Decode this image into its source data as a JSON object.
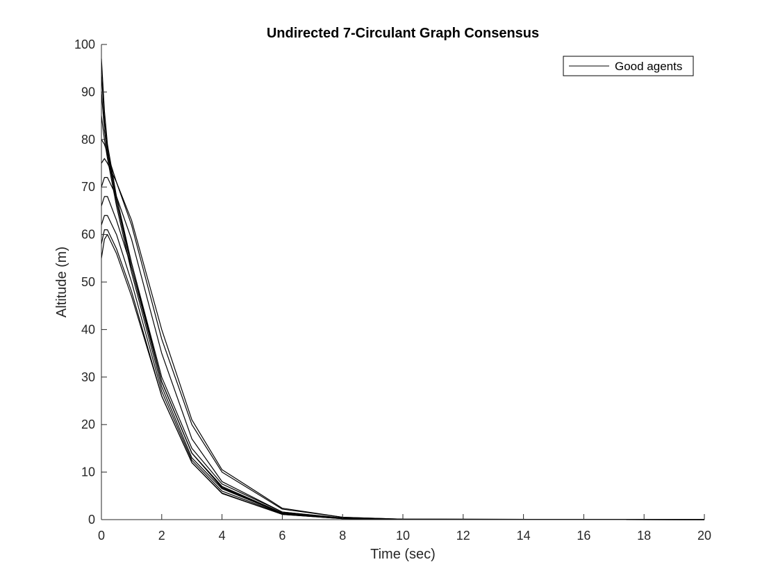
{
  "chart_data": {
    "type": "line",
    "title": "Undirected 7-Circulant Graph Consensus",
    "xlabel": "Time (sec)",
    "ylabel": "Altitude (m)",
    "xlim": [
      0,
      20
    ],
    "ylim": [
      0,
      100
    ],
    "xticks": [
      "0",
      "2",
      "4",
      "6",
      "8",
      "10",
      "12",
      "14",
      "16",
      "18",
      "20"
    ],
    "yticks": [
      "0",
      "10",
      "20",
      "30",
      "40",
      "50",
      "60",
      "70",
      "80",
      "90",
      "100"
    ],
    "grid": false,
    "legend": {
      "entries": [
        "Good agents"
      ],
      "position": "top-right"
    },
    "line_color": "#000000",
    "series": [
      {
        "name": "Good agents",
        "x": [
          0,
          0.1,
          0.2,
          0.5,
          1,
          2,
          3,
          4,
          6,
          8,
          10,
          20
        ],
        "y": [
          97,
          86,
          79,
          68,
          54,
          30,
          15,
          7.5,
          1.6,
          0.3,
          0.06,
          0
        ]
      },
      {
        "x": [
          0,
          0.1,
          0.2,
          0.5,
          1,
          2,
          3,
          4,
          6,
          8,
          10,
          20
        ],
        "y": [
          94,
          84,
          78,
          67,
          53,
          29,
          14,
          7,
          1.4,
          0.3,
          0.06,
          0
        ]
      },
      {
        "x": [
          0,
          0.1,
          0.2,
          0.5,
          1,
          2,
          3,
          4,
          6,
          8,
          10,
          20
        ],
        "y": [
          90,
          82,
          77,
          67,
          54,
          29,
          14,
          6.8,
          1.4,
          0.3,
          0.05,
          0
        ]
      },
      {
        "x": [
          0,
          0.1,
          0.2,
          0.5,
          1,
          2,
          3,
          4,
          6,
          8,
          10,
          20
        ],
        "y": [
          85,
          80,
          76,
          66,
          52,
          28,
          13,
          6.5,
          1.3,
          0.25,
          0.05,
          0
        ]
      },
      {
        "x": [
          0,
          0.1,
          0.2,
          0.5,
          1,
          2,
          3,
          4,
          6,
          8,
          10,
          20
        ],
        "y": [
          80,
          79,
          77,
          71,
          62,
          38,
          20,
          10,
          2.2,
          0.5,
          0.1,
          0
        ]
      },
      {
        "x": [
          0,
          0.1,
          0.2,
          0.5,
          1,
          2,
          3,
          4,
          6,
          8,
          10,
          20
        ],
        "y": [
          75,
          76,
          75,
          71,
          63,
          40,
          21,
          10.5,
          2.4,
          0.5,
          0.1,
          0
        ]
      },
      {
        "x": [
          0,
          0.1,
          0.2,
          0.5,
          1,
          2,
          3,
          4,
          6,
          8,
          10,
          20
        ],
        "y": [
          70,
          72,
          72,
          68,
          59,
          35,
          17,
          8,
          1.6,
          0.35,
          0.07,
          0
        ]
      },
      {
        "x": [
          0,
          0.1,
          0.2,
          0.5,
          1,
          2,
          3,
          4,
          6,
          8,
          10,
          20
        ],
        "y": [
          66,
          68,
          68,
          63,
          53,
          29,
          14,
          6.7,
          1.3,
          0.25,
          0.05,
          0
        ]
      },
      {
        "x": [
          0,
          0.1,
          0.2,
          0.5,
          1,
          2,
          3,
          4,
          6,
          8,
          10,
          20
        ],
        "y": [
          62,
          64,
          64,
          60,
          50,
          27,
          12.5,
          6,
          1.2,
          0.25,
          0.05,
          0
        ]
      },
      {
        "x": [
          0,
          0.1,
          0.2,
          0.5,
          1,
          2,
          3,
          4,
          6,
          8,
          10,
          20
        ],
        "y": [
          58,
          61,
          61,
          57,
          48,
          26,
          12,
          5.6,
          1.1,
          0.2,
          0.04,
          0
        ]
      },
      {
        "x": [
          0,
          0.1,
          0.2,
          0.5,
          1,
          2,
          3,
          4,
          6,
          8,
          10,
          20
        ],
        "y": [
          55,
          59,
          60,
          56,
          47,
          26,
          12,
          5.5,
          1.1,
          0.2,
          0.04,
          0
        ]
      }
    ]
  }
}
